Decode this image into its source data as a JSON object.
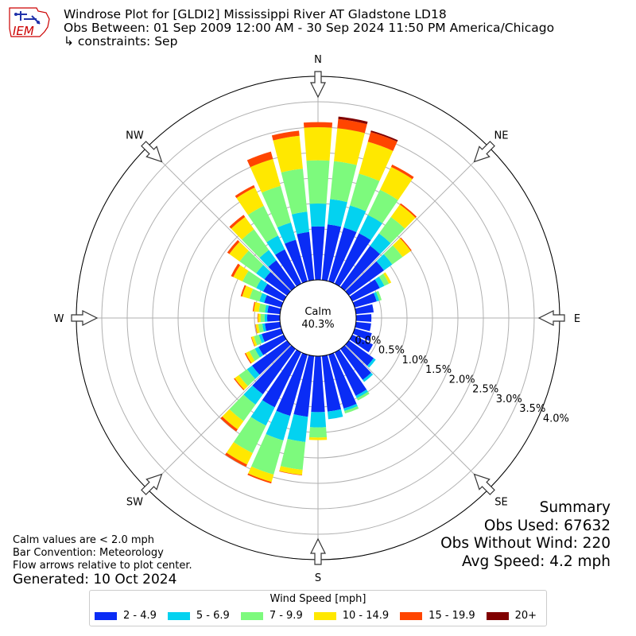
{
  "header": {
    "title_line1": "Windrose Plot for [GLDI2] Mississippi River  AT Gladstone LD18",
    "title_line2": "Obs Between: 01 Sep 2009 12:00 AM - 30 Sep 2024 11:50 PM America/Chicago",
    "title_line3": "↳ constraints: Sep",
    "logo_text": "IEM"
  },
  "notes": {
    "line1": "Calm values are < 2.0 mph",
    "line2": "Bar Convention: Meteorology",
    "line3": "Flow arrows relative to plot center.",
    "generated": "Generated: 10 Oct 2024"
  },
  "summary": {
    "title": "Summary",
    "obs_used": "Obs Used: 67632",
    "obs_without_wind": "Obs Without Wind: 220",
    "avg_speed": "Avg Speed: 4.2 mph"
  },
  "center": {
    "label": "Calm",
    "value": "40.3%"
  },
  "legend": {
    "title": "Wind Speed [mph]",
    "items": [
      {
        "label": "2 - 4.9",
        "color": "#0a2cf5"
      },
      {
        "label": "5 - 6.9",
        "color": "#03d2f0"
      },
      {
        "label": "7 - 9.9",
        "color": "#7dfa7d"
      },
      {
        "label": "10 - 14.9",
        "color": "#ffe800"
      },
      {
        "label": "15 - 19.9",
        "color": "#ff4500"
      },
      {
        "label": "20+",
        "color": "#800000"
      }
    ]
  },
  "chart_data": {
    "type": "windrose",
    "directions": [
      "N",
      "NE",
      "E",
      "SE",
      "S",
      "SW",
      "W",
      "NW"
    ],
    "radial_ticks": [
      "0.0%",
      "0.5%",
      "1.0%",
      "1.5%",
      "2.0%",
      "2.5%",
      "3.0%",
      "3.5%",
      "4.0%"
    ],
    "rmax": 4.0,
    "calm_percent": 40.3,
    "sector_degrees": [
      0,
      10,
      20,
      30,
      40,
      50,
      60,
      70,
      80,
      90,
      100,
      110,
      120,
      130,
      140,
      150,
      160,
      170,
      180,
      190,
      200,
      210,
      220,
      230,
      240,
      250,
      260,
      270,
      280,
      290,
      300,
      310,
      320,
      330,
      340,
      350
    ],
    "series": [
      {
        "name": "2 - 4.9",
        "values": [
          1.05,
          1.1,
          1.1,
          1.1,
          1.0,
          0.85,
          0.6,
          0.45,
          0.35,
          0.3,
          0.3,
          0.35,
          0.45,
          0.6,
          0.75,
          0.95,
          1.1,
          1.1,
          1.1,
          1.2,
          1.25,
          1.2,
          1.1,
          0.85,
          0.55,
          0.4,
          0.3,
          0.25,
          0.25,
          0.35,
          0.45,
          0.55,
          0.65,
          0.75,
          0.85,
          0.95
        ]
      },
      {
        "name": "5 - 6.9",
        "values": [
          0.45,
          0.5,
          0.45,
          0.4,
          0.3,
          0.2,
          0.1,
          0.05,
          0.0,
          0.0,
          0.0,
          0.0,
          0.0,
          0.05,
          0.05,
          0.05,
          0.05,
          0.15,
          0.3,
          0.5,
          0.5,
          0.4,
          0.25,
          0.12,
          0.08,
          0.06,
          0.05,
          0.05,
          0.05,
          0.1,
          0.15,
          0.2,
          0.25,
          0.3,
          0.35,
          0.4
        ]
      },
      {
        "name": "7 - 9.9",
        "values": [
          0.85,
          0.75,
          0.65,
          0.55,
          0.4,
          0.25,
          0.1,
          0.05,
          0.0,
          0.0,
          0.0,
          0.0,
          0.0,
          0.0,
          0.0,
          0.05,
          0.05,
          0.0,
          0.2,
          0.55,
          0.7,
          0.6,
          0.4,
          0.2,
          0.12,
          0.1,
          0.08,
          0.08,
          0.12,
          0.2,
          0.3,
          0.4,
          0.5,
          0.65,
          0.75,
          0.85
        ]
      },
      {
        "name": "10 - 14.9",
        "values": [
          0.65,
          0.65,
          0.65,
          0.5,
          0.3,
          0.2,
          0.05,
          0.0,
          0.0,
          0.0,
          0.0,
          0.0,
          0.0,
          0.0,
          0.0,
          0.0,
          0.0,
          0.0,
          0.05,
          0.1,
          0.15,
          0.25,
          0.2,
          0.1,
          0.08,
          0.05,
          0.05,
          0.05,
          0.1,
          0.15,
          0.2,
          0.25,
          0.3,
          0.4,
          0.55,
          0.65
        ]
      },
      {
        "name": "15 - 19.9",
        "values": [
          0.1,
          0.18,
          0.2,
          0.05,
          0.03,
          0.02,
          0.0,
          0.0,
          0.0,
          0.0,
          0.0,
          0.0,
          0.0,
          0.0,
          0.0,
          0.0,
          0.0,
          0.0,
          0.0,
          0.01,
          0.03,
          0.05,
          0.05,
          0.02,
          0.02,
          0.01,
          0.01,
          0.01,
          0.02,
          0.03,
          0.05,
          0.05,
          0.05,
          0.05,
          0.15,
          0.1
        ]
      },
      {
        "name": "20+",
        "values": [
          0.0,
          0.05,
          0.03,
          0.0,
          0.0,
          0.0,
          0.0,
          0.0,
          0.0,
          0.0,
          0.0,
          0.0,
          0.0,
          0.0,
          0.0,
          0.0,
          0.0,
          0.0,
          0.0,
          0.0,
          0.0,
          0.0,
          0.0,
          0.0,
          0.0,
          0.0,
          0.0,
          0.0,
          0.0,
          0.0,
          0.0,
          0.0,
          0.0,
          0.0,
          0.0,
          0.0
        ]
      }
    ]
  }
}
